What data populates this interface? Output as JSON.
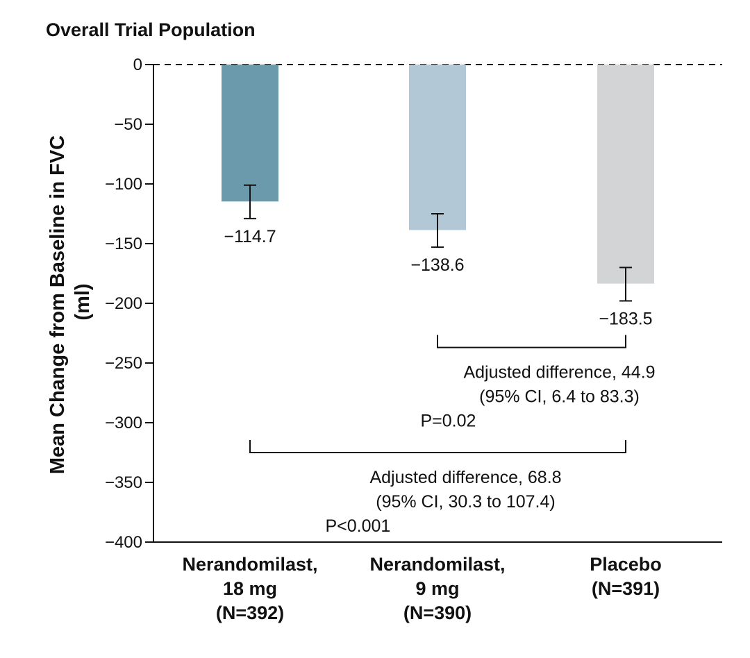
{
  "chart_data": {
    "type": "bar",
    "title": "Overall Trial Population",
    "ylabel_lines": [
      "Mean Change from Baseline in FVC",
      "(ml)"
    ],
    "xlabel": "",
    "ylim": [
      -400,
      0
    ],
    "yticks": [
      0,
      -50,
      -100,
      -150,
      -200,
      -250,
      -300,
      -350,
      -400
    ],
    "ytick_labels": [
      "0",
      "−50",
      "−100",
      "−150",
      "−200",
      "−250",
      "−300",
      "−350",
      "−400"
    ],
    "reference_line": {
      "y": 0,
      "style": "dashed"
    },
    "categories": [
      {
        "lines": [
          "Nerandomilast,",
          "18 mg",
          "(N=392)"
        ]
      },
      {
        "lines": [
          "Nerandomilast,",
          "9 mg",
          "(N=390)"
        ]
      },
      {
        "lines": [
          "Placebo",
          "(N=391)"
        ]
      }
    ],
    "values": [
      -114.7,
      -138.6,
      -183.5
    ],
    "value_labels": [
      "−114.7",
      "−138.6",
      "−183.5"
    ],
    "error_bars": [
      {
        "low": -129,
        "high": -101
      },
      {
        "low": -153,
        "high": -125
      },
      {
        "low": -198,
        "high": -170
      }
    ],
    "colors": [
      "#6b9aad",
      "#b2c8d6",
      "#d3d4d6"
    ],
    "comparisons": [
      {
        "from_index": 1,
        "to_index": 2,
        "bracket_y": -237,
        "lines": [
          "Adjusted difference, 44.9",
          "(95% CI, 6.4 to 83.3)",
          "P=0.02"
        ]
      },
      {
        "from_index": 0,
        "to_index": 2,
        "bracket_y": -325,
        "lines": [
          "Adjusted difference, 68.8",
          "(95% CI, 30.3 to 107.4)",
          "P<0.001"
        ]
      }
    ]
  }
}
